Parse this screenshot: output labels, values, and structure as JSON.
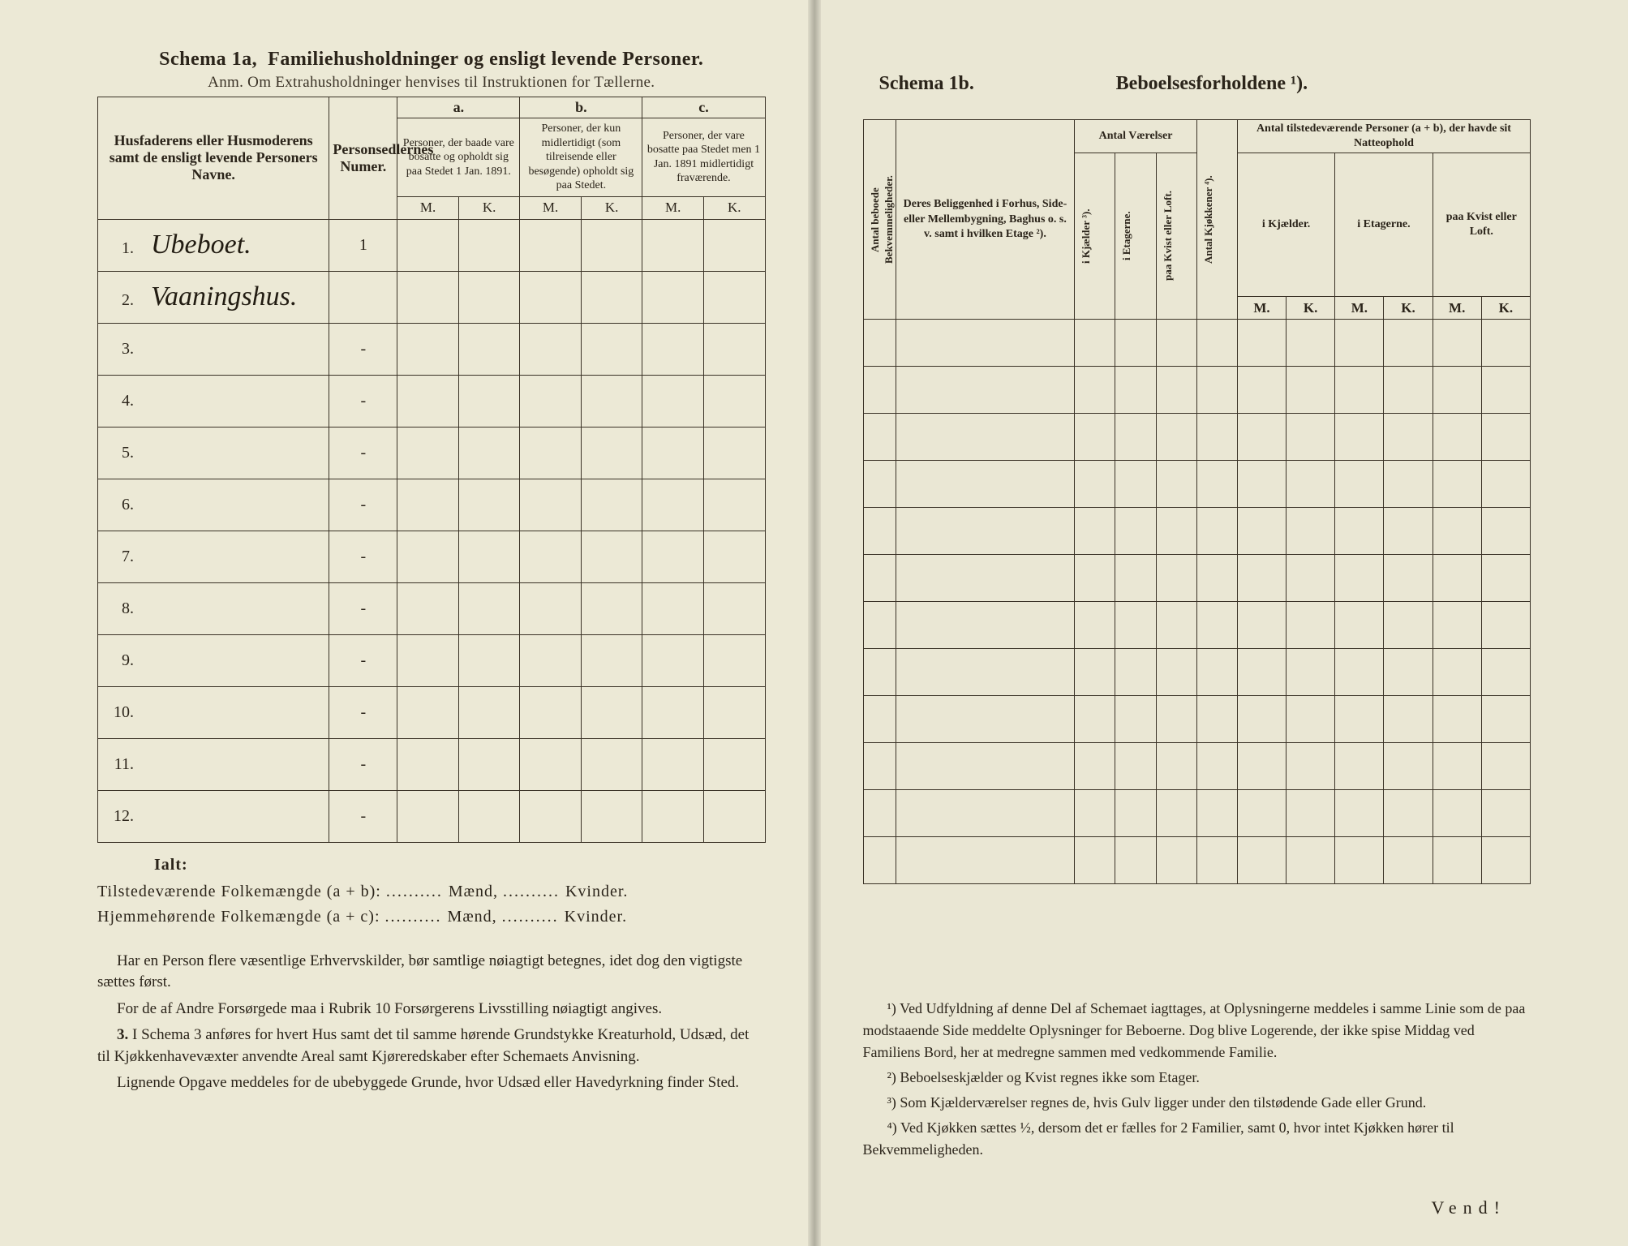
{
  "left": {
    "schema_label": "Schema 1a,",
    "title": "Familiehusholdninger og ensligt levende Personer.",
    "anm": "Anm. Om Extrahusholdninger henvises til Instruktionen for Tællerne.",
    "col_names": "Husfaderens eller Husmoderens samt de ensligt levende Personers Navne.",
    "col_nums": "Personsedlernes Numer.",
    "abc": {
      "a": "a.",
      "b": "b.",
      "c": "c."
    },
    "col_a": "Personer, der baade vare bosatte og opholdt sig paa Stedet 1 Jan. 1891.",
    "col_b": "Personer, der kun midlertidigt (som tilreisende eller besøgende) opholdt sig paa Stedet.",
    "col_c": "Personer, der vare bosatte paa Stedet men 1 Jan. 1891 midlertidigt fraværende.",
    "m": "M.",
    "k": "K.",
    "rows": [
      {
        "n": "1.",
        "name": "Ubeboet.",
        "num": "1",
        "hand": true
      },
      {
        "n": "2.",
        "name": "Vaaningshus.",
        "num": "",
        "hand": true
      },
      {
        "n": "3.",
        "name": "",
        "num": "-"
      },
      {
        "n": "4.",
        "name": "",
        "num": "-"
      },
      {
        "n": "5.",
        "name": "",
        "num": "-"
      },
      {
        "n": "6.",
        "name": "",
        "num": "-"
      },
      {
        "n": "7.",
        "name": "",
        "num": "-"
      },
      {
        "n": "8.",
        "name": "",
        "num": "-"
      },
      {
        "n": "9.",
        "name": "",
        "num": "-"
      },
      {
        "n": "10.",
        "name": "",
        "num": "-"
      },
      {
        "n": "11.",
        "name": "",
        "num": "-"
      },
      {
        "n": "12.",
        "name": "",
        "num": "-"
      }
    ],
    "ialt": "Ialt:",
    "tilst": "Tilstedeværende Folkemængde (a + b):",
    "hjem": "Hjemmehørende Folkemængde (a + c):",
    "maend": "Mænd,",
    "kvinder": "Kvinder.",
    "foot1": "Har en Person flere væsentlige Erhvervskilder, bør samtlige nøiagtigt betegnes, idet dog den vigtigste sættes først.",
    "foot2": "For de af Andre Forsørgede maa i Rubrik 10 Forsørgerens Livsstilling nøiagtigt angives.",
    "foot3_label": "3.",
    "foot3": "I Schema 3 anføres for hvert Hus samt det til samme hørende Grundstykke Kreaturhold, Udsæd, det til Kjøkkenhavevæxter anvendte Areal samt Kjøreredskaber efter Schemaets Anvisning.",
    "foot4": "Lignende Opgave meddeles for de ubebyggede Grunde, hvor Udsæd eller Havedyrkning finder Sted."
  },
  "right": {
    "schema_label": "Schema 1b.",
    "title": "Beboelsesforholdene ¹).",
    "col_antal_bek": "Antal beboede Bekvemmeligheder.",
    "col_belig": "Deres Beliggenhed i Forhus, Side- eller Mellembygning, Baghus o. s. v. samt i hvilken Etage ²).",
    "grp_vaer": "Antal Værelser",
    "col_kjaelder": "i Kjælder ³).",
    "col_etager": "i Etagerne.",
    "col_kvist": "paa Kvist eller Loft.",
    "col_kjokken": "Antal Kjøkkener ⁴).",
    "grp_pers": "Antal tilstedeværende Personer (a + b), der havde sit Natteophold",
    "sub_kjael": "i Kjælder.",
    "sub_etag": "i Etagerne.",
    "sub_kvist": "paa Kvist eller Loft.",
    "m": "M.",
    "k": "K.",
    "foot1": "¹) Ved Udfyldning af denne Del af Schemaet iagttages, at Oplysningerne meddeles i samme Linie som de paa modstaaende Side meddelte Oplysninger for Beboerne. Dog blive Logerende, der ikke spise Middag ved Familiens Bord, her at medregne sammen med vedkommende Familie.",
    "foot2": "²) Beboelseskjælder og Kvist regnes ikke som Etager.",
    "foot3": "³) Som Kjælderværelser regnes de, hvis Gulv ligger under den tilstødende Gade eller Grund.",
    "foot4": "⁴) Ved Kjøkken sættes ½, dersom det er fælles for 2 Familier, samt 0, hvor intet Kjøkken hører til Bekvemmeligheden.",
    "vend": "Vend!"
  },
  "colors": {
    "paper": "#ece9d6",
    "ink": "#2b241a",
    "rule": "#3a3226"
  }
}
